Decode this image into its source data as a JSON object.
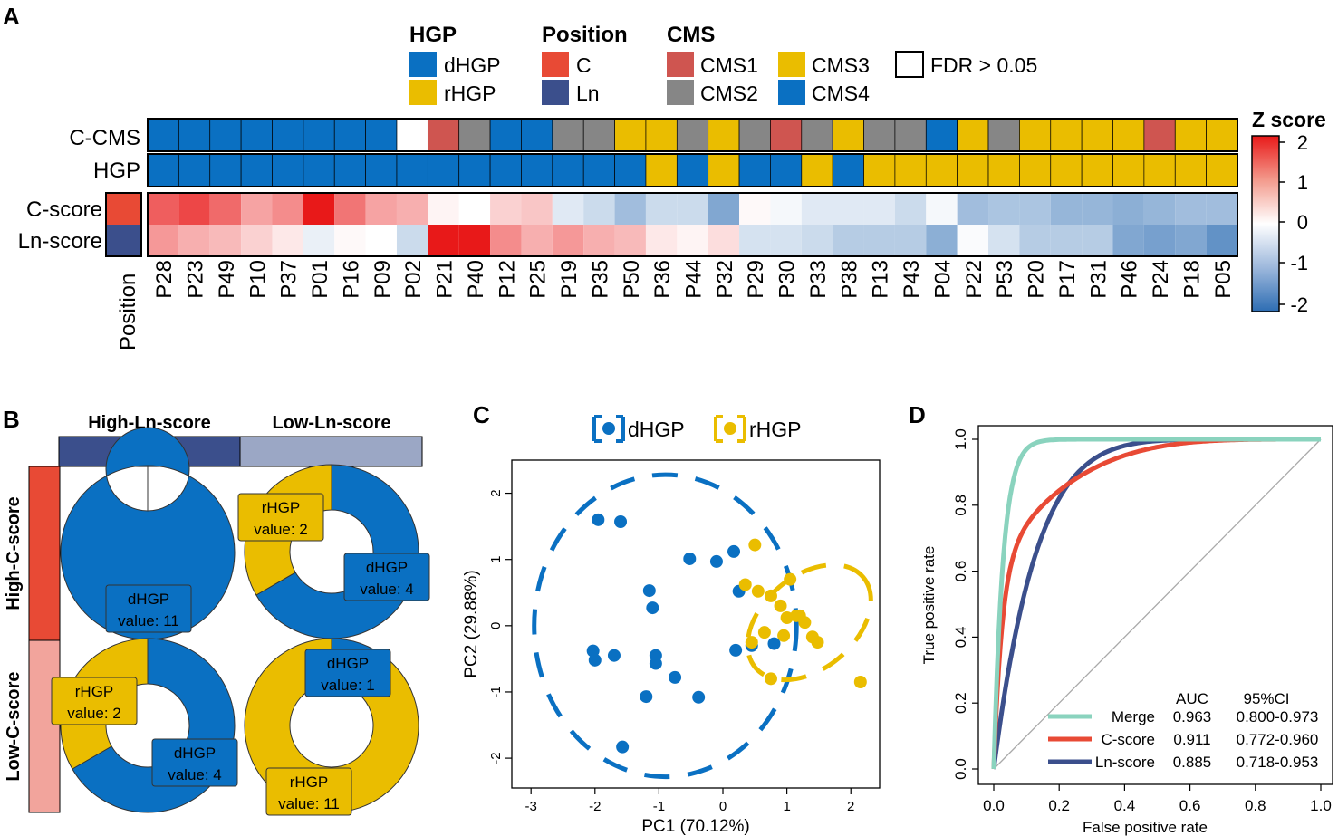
{
  "panels": {
    "A": "A",
    "B": "B",
    "C": "C",
    "D": "D"
  },
  "colors": {
    "dHGP": "#0a70c2",
    "rHGP": "#eabd00",
    "CMS1": "#cf5550",
    "CMS2": "#868686",
    "CMS3": "#eabd00",
    "CMS4": "#0a70c2",
    "fdr": "#ffffff",
    "C": "#e84a35",
    "Ln": "#3b4f8c",
    "high_ln": "#3b4f8c",
    "low_ln": "#9ba7c5",
    "high_c": "#e84a35",
    "low_c": "#f2a49c",
    "merge": "#8ad3be",
    "cscore_line": "#e84a35",
    "lnscore_line": "#3b4f8c"
  },
  "legend": {
    "hgp_title": "HGP",
    "hgp_items": [
      "dHGP",
      "rHGP"
    ],
    "position_title": "Position",
    "position_items": [
      "C",
      "Ln"
    ],
    "cms_title": "CMS",
    "cms_items": [
      "CMS1",
      "CMS2",
      "CMS3",
      "CMS4"
    ],
    "fdr_label": "FDR > 0.05",
    "zscore_title": "Z score",
    "zscore_ticks": [
      "2",
      "1",
      "0",
      "-1",
      "-2"
    ]
  },
  "heatmap": {
    "row_labels": {
      "ccms": "C-CMS",
      "hgp": "HGP",
      "cscore": "C-score",
      "lnscore": "Ln-score"
    },
    "position_label": "Position",
    "position_cells": [
      "C",
      "Ln"
    ],
    "patients": [
      "P28",
      "P23",
      "P49",
      "P10",
      "P37",
      "P01",
      "P16",
      "P09",
      "P02",
      "P21",
      "P40",
      "P12",
      "P25",
      "P19",
      "P35",
      "P50",
      "P36",
      "P44",
      "P32",
      "P29",
      "P30",
      "P33",
      "P38",
      "P13",
      "P43",
      "P04",
      "P22",
      "P53",
      "P20",
      "P17",
      "P31",
      "P46",
      "P24",
      "P18",
      "P05"
    ],
    "ccms": [
      "CMS4",
      "CMS4",
      "CMS4",
      "CMS4",
      "CMS4",
      "CMS4",
      "CMS4",
      "CMS4",
      "FDR",
      "CMS1",
      "CMS2",
      "CMS4",
      "CMS4",
      "CMS2",
      "CMS2",
      "CMS3",
      "CMS3",
      "CMS2",
      "CMS3",
      "CMS2",
      "CMS1",
      "CMS2",
      "CMS3",
      "CMS2",
      "CMS2",
      "CMS4",
      "CMS3",
      "CMS2",
      "CMS3",
      "CMS3",
      "CMS3",
      "CMS3",
      "CMS1",
      "CMS3",
      "CMS3"
    ],
    "hgp": [
      "dHGP",
      "dHGP",
      "dHGP",
      "dHGP",
      "dHGP",
      "dHGP",
      "dHGP",
      "dHGP",
      "dHGP",
      "dHGP",
      "dHGP",
      "dHGP",
      "dHGP",
      "dHGP",
      "dHGP",
      "dHGP",
      "rHGP",
      "dHGP",
      "rHGP",
      "dHGP",
      "dHGP",
      "rHGP",
      "dHGP",
      "rHGP",
      "rHGP",
      "rHGP",
      "rHGP",
      "rHGP",
      "rHGP",
      "rHGP",
      "rHGP",
      "rHGP",
      "rHGP",
      "rHGP",
      "rHGP"
    ],
    "cscore": [
      1.4,
      1.6,
      1.3,
      0.8,
      1.0,
      2.1,
      1.2,
      0.8,
      0.7,
      0.1,
      0.0,
      0.4,
      0.5,
      -0.3,
      -0.5,
      -0.9,
      -0.5,
      -0.5,
      -1.2,
      0.05,
      -0.1,
      -0.3,
      -0.3,
      -0.3,
      -0.5,
      -0.1,
      -0.9,
      -0.8,
      -0.8,
      -1.0,
      -1.0,
      -1.1,
      -1.0,
      -0.9,
      -0.9
    ],
    "lnscore": [
      0.9,
      0.7,
      0.6,
      0.4,
      0.2,
      -0.2,
      0.05,
      0.0,
      -0.5,
      2.0,
      2.1,
      1.0,
      0.7,
      0.9,
      0.7,
      0.6,
      0.2,
      0.1,
      0.3,
      -0.4,
      -0.4,
      -0.5,
      -0.7,
      -0.7,
      -0.7,
      -1.1,
      -0.05,
      -0.4,
      -0.7,
      -0.7,
      -0.7,
      -1.2,
      -1.3,
      -1.2,
      -1.5
    ]
  },
  "panelB": {
    "col_headers": [
      "High-Ln-score",
      "Low-Ln-score"
    ],
    "row_headers": [
      "High-C-score",
      "Low-C-score"
    ],
    "donuts": [
      {
        "d": 11,
        "r": 0,
        "labels": [
          {
            "text1": "dHGP",
            "text2": "value: 11",
            "type": "dHGP"
          }
        ]
      },
      {
        "d": 4,
        "r": 2,
        "labels": [
          {
            "text1": "rHGP",
            "text2": "value: 2",
            "type": "rHGP"
          },
          {
            "text1": "dHGP",
            "text2": "value: 4",
            "type": "dHGP"
          }
        ]
      },
      {
        "d": 4,
        "r": 2,
        "labels": [
          {
            "text1": "rHGP",
            "text2": "value: 2",
            "type": "rHGP"
          },
          {
            "text1": "dHGP",
            "text2": "value: 4",
            "type": "dHGP"
          }
        ]
      },
      {
        "d": 1,
        "r": 11,
        "labels": [
          {
            "text1": "dHGP",
            "text2": "value: 1",
            "type": "dHGP"
          },
          {
            "text1": "rHGP",
            "text2": "value: 11",
            "type": "rHGP"
          }
        ]
      }
    ]
  },
  "chart_data": [
    {
      "type": "scatter",
      "panel": "C",
      "xlabel": "PC1 (70.12%)",
      "ylabel": "PC2 (29.88%)",
      "xlim": [
        -3.3,
        2.45
      ],
      "ylim": [
        -2.45,
        2.5
      ],
      "xticks": [
        "-3",
        "-2",
        "-1",
        "0",
        "1",
        "2"
      ],
      "yticks": [
        "-2",
        "-1",
        "0",
        "1",
        "2"
      ],
      "legend": [
        "dHGP",
        "rHGP"
      ],
      "series": [
        {
          "name": "dHGP",
          "points": [
            [
              -1.95,
              1.6
            ],
            [
              -1.6,
              1.57
            ],
            [
              -0.52,
              1.01
            ],
            [
              -0.1,
              0.97
            ],
            [
              0.17,
              1.12
            ],
            [
              -1.15,
              0.53
            ],
            [
              0.25,
              0.52
            ],
            [
              -1.1,
              0.27
            ],
            [
              -2.03,
              -0.38
            ],
            [
              -2.0,
              -0.52
            ],
            [
              -1.7,
              -0.45
            ],
            [
              -1.05,
              -0.45
            ],
            [
              -1.05,
              -0.57
            ],
            [
              -0.75,
              -0.78
            ],
            [
              0.2,
              -0.37
            ],
            [
              0.45,
              -0.3
            ],
            [
              0.8,
              -0.27
            ],
            [
              -1.2,
              -1.07
            ],
            [
              -0.38,
              -1.08
            ],
            [
              -1.57,
              -1.83
            ]
          ]
        },
        {
          "name": "rHGP",
          "points": [
            [
              0.5,
              1.22
            ],
            [
              0.35,
              0.62
            ],
            [
              0.55,
              0.52
            ],
            [
              0.75,
              0.45
            ],
            [
              0.9,
              0.3
            ],
            [
              1.0,
              0.12
            ],
            [
              1.15,
              0.15
            ],
            [
              1.2,
              0.15
            ],
            [
              1.28,
              0.05
            ],
            [
              0.65,
              -0.1
            ],
            [
              0.95,
              -0.15
            ],
            [
              1.4,
              -0.17
            ],
            [
              1.48,
              -0.25
            ],
            [
              0.75,
              -0.8
            ],
            [
              0.45,
              -0.25
            ],
            [
              2.15,
              -0.85
            ],
            [
              1.05,
              0.7
            ]
          ]
        }
      ],
      "ellipses": [
        {
          "name": "dHGP",
          "cx": -0.9,
          "cy": 0.0,
          "rx": 2.05,
          "ry": 2.28,
          "angle": 0
        },
        {
          "name": "rHGP",
          "cx": 1.35,
          "cy": 0.05,
          "rx": 1.1,
          "ry": 0.7,
          "angle": -40
        }
      ]
    },
    {
      "type": "line",
      "panel": "D",
      "xlabel": "False positive rate",
      "ylabel": "True positive rate",
      "xlim": [
        0,
        1
      ],
      "ylim": [
        0,
        1
      ],
      "xticks": [
        "0.0",
        "0.2",
        "0.4",
        "0.6",
        "0.8",
        "1.0"
      ],
      "yticks": [
        "0.0",
        "0.2",
        "0.4",
        "0.6",
        "0.8",
        "1.0"
      ],
      "table_headers": [
        "AUC",
        "95%CI"
      ],
      "series": [
        {
          "name": "Merge",
          "auc": "0.963",
          "ci": "0.800-0.973",
          "k": 35
        },
        {
          "name": "C-score",
          "auc": "0.911",
          "ci": "0.772-0.960",
          "k": 10
        },
        {
          "name": "Ln-score",
          "auc": "0.885",
          "ci": "0.718-0.953",
          "k": 7.7
        }
      ]
    }
  ]
}
